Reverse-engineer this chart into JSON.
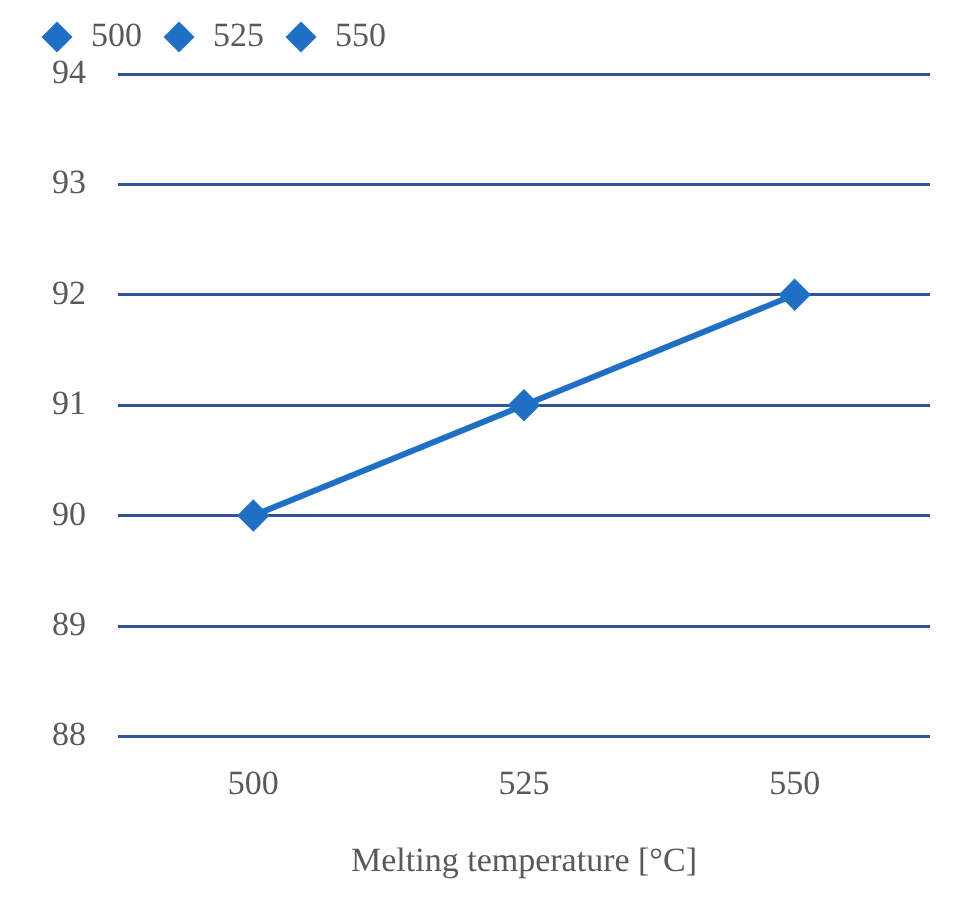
{
  "chart_data": {
    "type": "line",
    "xlabel": "Melting temperature [°C]",
    "categories": [
      "500",
      "525",
      "550"
    ],
    "series": [
      {
        "color": "#1f6fc5",
        "values": [
          90,
          91,
          92
        ],
        "marker": "none"
      },
      {
        "name": "500",
        "color": "#1f6fc5",
        "values": [
          90,
          null,
          null
        ]
      },
      {
        "name": "525",
        "color": "#1f6fc5",
        "values": [
          null,
          91,
          null
        ]
      },
      {
        "name": "550",
        "color": "#1f6fc5",
        "values": [
          null,
          null,
          92
        ]
      }
    ],
    "ylim": [
      88,
      94
    ],
    "yticks": [
      88,
      89,
      90,
      91,
      92,
      93,
      94
    ],
    "grid": "y",
    "legend": "top",
    "marker": "diamond",
    "line_style": "solid"
  }
}
